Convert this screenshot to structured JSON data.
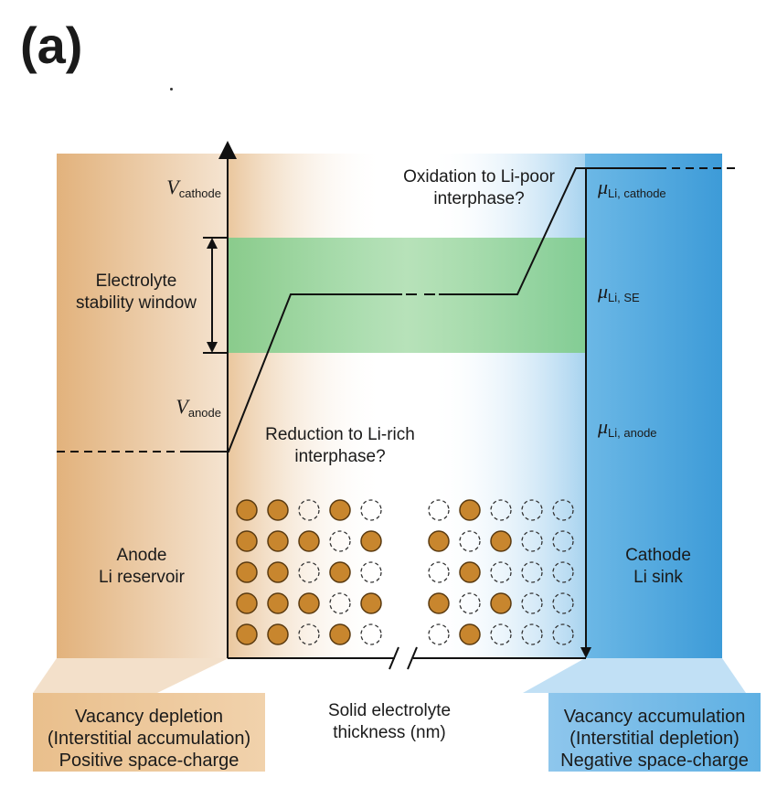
{
  "panel_label": "(a)",
  "symbols": {
    "v_cathode": {
      "main": "V",
      "sub": "cathode"
    },
    "v_anode": {
      "main": "V",
      "sub": "anode"
    },
    "mu_cathode": {
      "main": "μ",
      "sub": "Li, cathode"
    },
    "mu_se": {
      "main": "μ",
      "sub": "Li, SE"
    },
    "mu_anode": {
      "main": "μ",
      "sub": "Li, anode"
    }
  },
  "labels": {
    "stability_window": [
      "Electrolyte",
      "stability window"
    ],
    "oxidation": [
      "Oxidation to Li-poor",
      "interphase?"
    ],
    "reduction": [
      "Reduction to Li-rich",
      "interphase?"
    ],
    "anode": [
      "Anode",
      "Li reservoir"
    ],
    "cathode": [
      "Cathode",
      "Li sink"
    ],
    "x_axis": [
      "Solid electrolyte",
      "thickness (nm)"
    ]
  },
  "boxes": {
    "left": [
      "Vacancy depletion",
      "(Interstitial accumulation)",
      "Positive space-charge"
    ],
    "right": [
      "Vacancy accumulation",
      "(Interstitial depletion)",
      "Negative space-charge"
    ]
  },
  "lattice": {
    "left": [
      [
        1,
        1,
        0,
        1,
        0
      ],
      [
        1,
        1,
        1,
        0,
        1
      ],
      [
        1,
        1,
        0,
        1,
        0
      ],
      [
        1,
        1,
        1,
        0,
        1
      ],
      [
        1,
        1,
        0,
        1,
        0
      ]
    ],
    "right": [
      [
        0,
        1,
        0,
        0,
        0
      ],
      [
        1,
        0,
        1,
        0,
        0
      ],
      [
        0,
        1,
        0,
        0,
        0
      ],
      [
        1,
        0,
        1,
        0,
        0
      ],
      [
        0,
        1,
        0,
        0,
        0
      ]
    ]
  },
  "colors": {
    "anode": "#e2b27c",
    "cathode": "#5aaee0",
    "stability_band": "#7fcc8a",
    "ion_fill": "#c8862e",
    "ion_stroke": "#5a3a10"
  }
}
